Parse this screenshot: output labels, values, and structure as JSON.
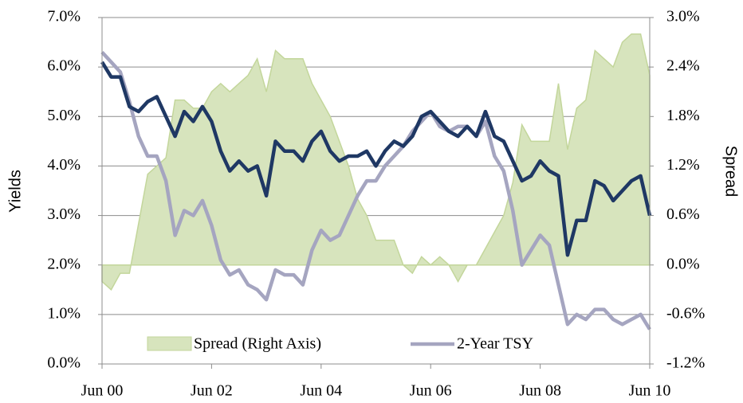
{
  "chart_data": {
    "type": "line",
    "x": [
      "2000-06",
      "2000-08",
      "2000-10",
      "2000-12",
      "2001-02",
      "2001-04",
      "2001-06",
      "2001-08",
      "2001-10",
      "2001-12",
      "2002-02",
      "2002-04",
      "2002-06",
      "2002-08",
      "2002-10",
      "2002-12",
      "2003-02",
      "2003-04",
      "2003-06",
      "2003-08",
      "2003-10",
      "2003-12",
      "2004-02",
      "2004-04",
      "2004-06",
      "2004-08",
      "2004-10",
      "2004-12",
      "2005-02",
      "2005-04",
      "2005-06",
      "2005-08",
      "2005-10",
      "2005-12",
      "2006-02",
      "2006-04",
      "2006-06",
      "2006-08",
      "2006-10",
      "2006-12",
      "2007-02",
      "2007-04",
      "2007-06",
      "2007-08",
      "2007-10",
      "2007-12",
      "2008-02",
      "2008-04",
      "2008-06",
      "2008-08",
      "2008-10",
      "2008-12",
      "2009-02",
      "2009-04",
      "2009-06",
      "2009-08",
      "2009-10",
      "2009-12",
      "2010-02",
      "2010-04",
      "2010-06"
    ],
    "series": [
      {
        "name": "Spread (Right Axis)",
        "color": "#d7e4bd",
        "axis": "y2",
        "values": [
          -0.2,
          -0.3,
          -0.1,
          -0.1,
          0.5,
          1.1,
          1.2,
          1.3,
          2.0,
          2.0,
          1.9,
          1.9,
          2.1,
          2.2,
          2.1,
          2.2,
          2.3,
          2.5,
          2.1,
          2.6,
          2.5,
          2.5,
          2.5,
          2.2,
          2.0,
          1.8,
          1.5,
          1.2,
          0.8,
          0.6,
          0.3,
          0.3,
          0.3,
          0.0,
          -0.1,
          0.1,
          0.0,
          0.1,
          0.0,
          -0.2,
          0.0,
          0.0,
          0.2,
          0.4,
          0.6,
          1.0,
          1.7,
          1.5,
          1.5,
          1.5,
          2.2,
          1.4,
          1.9,
          2.0,
          2.6,
          2.5,
          2.4,
          2.7,
          2.8,
          2.8,
          2.3
        ]
      },
      {
        "name": "2-Year TSY",
        "color": "#a5a5c0",
        "values": [
          6.3,
          6.1,
          5.9,
          5.3,
          4.6,
          4.2,
          4.2,
          3.7,
          2.6,
          3.1,
          3.0,
          3.3,
          2.8,
          2.1,
          1.8,
          1.9,
          1.6,
          1.5,
          1.3,
          1.9,
          1.8,
          1.8,
          1.6,
          2.3,
          2.7,
          2.5,
          2.6,
          3.0,
          3.4,
          3.7,
          3.7,
          4.0,
          4.2,
          4.4,
          4.7,
          4.9,
          5.1,
          4.8,
          4.7,
          4.8,
          4.8,
          4.6,
          4.9,
          4.2,
          3.9,
          3.1,
          2.0,
          2.3,
          2.6,
          2.4,
          1.6,
          0.8,
          1.0,
          0.9,
          1.1,
          1.1,
          0.9,
          0.8,
          0.9,
          1.0,
          0.7
        ]
      },
      {
        "color": "#1f3864",
        "values": [
          6.1,
          5.8,
          5.8,
          5.2,
          5.1,
          5.3,
          5.4,
          5.0,
          4.6,
          5.1,
          4.9,
          5.2,
          4.9,
          4.3,
          3.9,
          4.1,
          3.9,
          4.0,
          3.4,
          4.5,
          4.3,
          4.3,
          4.1,
          4.5,
          4.7,
          4.3,
          4.1,
          4.2,
          4.2,
          4.3,
          4.0,
          4.3,
          4.5,
          4.4,
          4.6,
          5.0,
          5.1,
          4.9,
          4.7,
          4.6,
          4.8,
          4.6,
          5.1,
          4.6,
          4.5,
          4.1,
          3.7,
          3.8,
          4.1,
          3.9,
          3.8,
          2.2,
          2.9,
          2.9,
          3.7,
          3.6,
          3.3,
          3.5,
          3.7,
          3.8,
          3.0
        ]
      }
    ],
    "ylabel": "Yields",
    "y2label": "Spread",
    "ylim": [
      0,
      7
    ],
    "yticks": [
      {
        "value": 0,
        "label": "0.0%"
      },
      {
        "value": 1,
        "label": "1.0%"
      },
      {
        "value": 2,
        "label": "2.0%"
      },
      {
        "value": 3,
        "label": "3.0%"
      },
      {
        "value": 4,
        "label": "4.0%"
      },
      {
        "value": 5,
        "label": "5.0%"
      },
      {
        "value": 6,
        "label": "6.0%"
      },
      {
        "value": 7,
        "label": "7.0%"
      }
    ],
    "y2lim": [
      -1.2,
      3.0
    ],
    "y2ticks": [
      {
        "value": -1.2,
        "label": "-1.2%"
      },
      {
        "value": -0.6,
        "label": "-0.6%"
      },
      {
        "value": 0,
        "label": "0.0%"
      },
      {
        "value": 0.6,
        "label": "0.6%"
      },
      {
        "value": 1.2,
        "label": "1.2%"
      },
      {
        "value": 1.8,
        "label": "1.8%"
      },
      {
        "value": 2.4,
        "label": "2.4%"
      },
      {
        "value": 3.0,
        "label": "3.0%"
      }
    ],
    "xlim": [
      "2000-06",
      "2010-06"
    ],
    "xticks": [
      {
        "value": "2000-06",
        "label": "Jun 00"
      },
      {
        "value": "2002-06",
        "label": "Jun 02"
      },
      {
        "value": "2004-06",
        "label": "Jun 04"
      },
      {
        "value": "2006-06",
        "label": "Jun 06"
      },
      {
        "value": "2008-06",
        "label": "Jun 08"
      },
      {
        "value": "2010-06",
        "label": "Jun 10"
      }
    ],
    "grid": true
  }
}
